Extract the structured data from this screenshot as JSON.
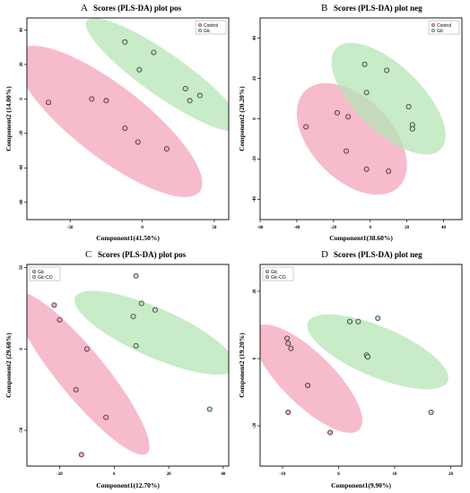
{
  "colors": {
    "control": "#f4a6ba",
    "glc": "#b5e4b5",
    "glc_co": "#b5e4b5",
    "point_edge": "#333333"
  },
  "chart_data": [
    {
      "type": "scatter",
      "panel_label": "A",
      "title": "Scores (PLS-DA) plot pos",
      "xlabel": "Component1(41.50%)",
      "ylabel": "Component2 (14.00%)",
      "xlim": [
        -80,
        60
      ],
      "ylim": [
        -70,
        47
      ],
      "xticks": [
        -50,
        0,
        50
      ],
      "xtick_labels": [
        "-50",
        "0",
        "50"
      ],
      "yticks": [
        -60,
        -40,
        -20,
        0,
        20,
        40
      ],
      "ytick_labels": [
        "-60",
        "-40",
        "-20",
        "0",
        "20",
        "40"
      ],
      "legend_position": "top-right",
      "series": [
        {
          "name": "Control",
          "color": "#f4a6ba",
          "x": [
            -65,
            -35,
            -25,
            -12,
            -3,
            17
          ],
          "y": [
            -2,
            0,
            -1,
            -17,
            -25,
            -29
          ],
          "ellipse": {
            "cx": -23,
            "cy": -13,
            "rx": 75,
            "ry": 22,
            "angle": -32
          }
        },
        {
          "name": "Glc",
          "color": "#b5e4b5",
          "x": [
            -12,
            -2,
            8,
            30,
            33,
            40
          ],
          "y": [
            33,
            17,
            27,
            6,
            -1,
            2
          ],
          "ellipse": {
            "cx": 15,
            "cy": 14,
            "rx": 62,
            "ry": 13,
            "angle": -30
          }
        }
      ]
    },
    {
      "type": "scatter",
      "panel_label": "B",
      "title": "Scores (PLS-DA) plot neg",
      "xlabel": "Component1(38.60%)",
      "ylabel": "Component2 (20.20%)",
      "xlim": [
        -60,
        50
      ],
      "ylim": [
        -50,
        50
      ],
      "xticks": [
        -60,
        -40,
        -20,
        0,
        20,
        40
      ],
      "xtick_labels": [
        "-60",
        "-40",
        "-20",
        "0",
        "20",
        "40"
      ],
      "yticks": [
        -40,
        -20,
        0,
        20,
        40
      ],
      "ytick_labels": [
        "-40",
        "-20",
        "0",
        "20",
        "40"
      ],
      "legend_position": "top-right",
      "series": [
        {
          "name": "Control",
          "color": "#f4a6ba",
          "x": [
            -35,
            -18,
            -12,
            -13,
            -2,
            10
          ],
          "y": [
            -4,
            3,
            1,
            -16,
            -25,
            -26
          ],
          "ellipse": {
            "cx": -10,
            "cy": -10,
            "rx": 35,
            "ry": 21,
            "angle": -40
          }
        },
        {
          "name": "Glc",
          "color": "#b5e4b5",
          "x": [
            -3,
            -2,
            9,
            21,
            23,
            23
          ],
          "y": [
            27,
            13,
            24,
            6,
            -3,
            -5
          ],
          "ellipse": {
            "cx": 10,
            "cy": 10,
            "rx": 38,
            "ry": 17,
            "angle": -40
          }
        }
      ]
    },
    {
      "type": "scatter",
      "panel_label": "C",
      "title": "Scores (PLS-DA) plot pos",
      "xlabel": "Component1(12.70%)",
      "ylabel": "Component2 (29.60%)",
      "xlim": [
        -32,
        42
      ],
      "ylim": [
        -72,
        52
      ],
      "xticks": [
        -20,
        0,
        20,
        40
      ],
      "xtick_labels": [
        "-20",
        "0",
        "20",
        "40"
      ],
      "yticks": [
        -50,
        0,
        50
      ],
      "ytick_labels": [
        "-50",
        "0",
        "50"
      ],
      "legend_position": "top-left",
      "series": [
        {
          "name": "Glc",
          "color": "#f4a6ba",
          "x": [
            -22,
            -20,
            -10,
            -14,
            -3,
            -12
          ],
          "y": [
            27,
            18,
            0,
            -25,
            -42,
            -65
          ],
          "ellipse": {
            "cx": -12,
            "cy": -15,
            "rx": 55,
            "ry": 10,
            "angle": -65
          }
        },
        {
          "name": "Glc-CO",
          "color": "#b5e4b5",
          "x": [
            8,
            10,
            15,
            7,
            8,
            35
          ],
          "y": [
            45,
            28,
            24,
            20,
            2,
            -37
          ],
          "ellipse": {
            "cx": 15,
            "cy": 10,
            "rx": 37,
            "ry": 13,
            "angle": -40
          }
        }
      ]
    },
    {
      "type": "scatter",
      "panel_label": "D",
      "title": "Scores (PLS-DA) plot neg",
      "xlabel": "Component1(9.90%)",
      "ylabel": "Component2 (19.20%)",
      "xlim": [
        -14,
        22
      ],
      "ylim": [
        -32,
        28
      ],
      "xticks": [
        -10,
        0,
        10,
        20
      ],
      "xtick_labels": [
        "-10",
        "0",
        "10",
        "20"
      ],
      "yticks": [
        -20,
        0,
        20
      ],
      "ytick_labels": [
        "-20",
        "0",
        "20"
      ],
      "legend_position": "top-left",
      "series": [
        {
          "name": "Glc",
          "color": "#f4a6ba",
          "x": [
            -9.2,
            -9.0,
            -8.5,
            -5.5,
            -9.0,
            -1.5
          ],
          "y": [
            6,
            4.5,
            3,
            -8,
            -16,
            -22
          ],
          "ellipse": {
            "cx": -5.5,
            "cy": -6,
            "rx": 18,
            "ry": 5.5,
            "angle": -62
          }
        },
        {
          "name": "Glc-CO",
          "color": "#b5e4b5",
          "x": [
            2,
            3.5,
            7,
            5,
            5.2,
            16.5
          ],
          "y": [
            11,
            11,
            12,
            1,
            0.5,
            -16
          ],
          "ellipse": {
            "cx": 7,
            "cy": 2,
            "rx": 15.5,
            "ry": 6.5,
            "angle": -40
          }
        }
      ]
    }
  ]
}
